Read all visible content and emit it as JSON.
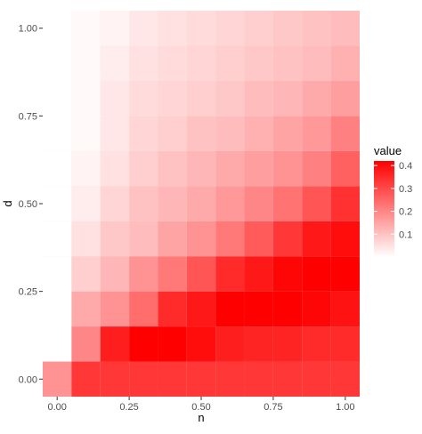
{
  "chart_data": {
    "type": "heatmap",
    "title": "",
    "xlabel": "n",
    "ylabel": "d",
    "x": [
      0.0,
      0.1,
      0.2,
      0.3,
      0.4,
      0.5,
      0.6,
      0.7,
      0.8,
      0.9,
      1.0
    ],
    "y": [
      0.0,
      0.1,
      0.2,
      0.3,
      0.4,
      0.5,
      0.6,
      0.7,
      0.8,
      0.9,
      1.0
    ],
    "xlim": [
      -0.05,
      1.05
    ],
    "ylim": [
      -0.05,
      1.05
    ],
    "x_ticks": [
      0.0,
      0.25,
      0.5,
      0.75,
      1.0
    ],
    "y_ticks": [
      0.0,
      0.25,
      0.5,
      0.75,
      1.0
    ],
    "x_tick_labels": [
      "0.00",
      "0.25",
      "0.50",
      "0.75",
      "1.00"
    ],
    "y_tick_labels": [
      "0.00",
      "0.25",
      "0.50",
      "0.75",
      "1.00"
    ],
    "values": [
      [
        0.18,
        0.33,
        0.33,
        0.33,
        0.33,
        0.33,
        0.33,
        0.33,
        0.33,
        0.33,
        0.33
      ],
      [
        0.0,
        0.2,
        0.37,
        0.42,
        0.42,
        0.4,
        0.37,
        0.36,
        0.36,
        0.35,
        0.35
      ],
      [
        0.0,
        0.14,
        0.18,
        0.24,
        0.35,
        0.38,
        0.42,
        0.42,
        0.42,
        0.41,
        0.39
      ],
      [
        0.0,
        0.08,
        0.12,
        0.18,
        0.22,
        0.28,
        0.35,
        0.38,
        0.41,
        0.42,
        0.42
      ],
      [
        0.0,
        0.05,
        0.09,
        0.11,
        0.15,
        0.18,
        0.22,
        0.27,
        0.33,
        0.38,
        0.4
      ],
      [
        0.0,
        0.03,
        0.07,
        0.1,
        0.12,
        0.14,
        0.17,
        0.2,
        0.23,
        0.28,
        0.34
      ],
      [
        0.0,
        0.02,
        0.05,
        0.08,
        0.1,
        0.12,
        0.14,
        0.16,
        0.18,
        0.21,
        0.26
      ],
      [
        0.0,
        0.01,
        0.04,
        0.07,
        0.08,
        0.1,
        0.11,
        0.13,
        0.15,
        0.17,
        0.21
      ],
      [
        0.0,
        0.01,
        0.04,
        0.06,
        0.07,
        0.08,
        0.09,
        0.11,
        0.12,
        0.14,
        0.16
      ],
      [
        0.0,
        0.01,
        0.03,
        0.05,
        0.06,
        0.07,
        0.08,
        0.09,
        0.1,
        0.11,
        0.13
      ],
      [
        0.0,
        0.01,
        0.02,
        0.04,
        0.05,
        0.06,
        0.07,
        0.08,
        0.09,
        0.1,
        0.11
      ]
    ],
    "legend": {
      "title": "value",
      "position": "right",
      "min": 0.0,
      "max": 0.42,
      "breaks": [
        0.1,
        0.2,
        0.3,
        0.4
      ],
      "break_labels": [
        "0.1",
        "0.2",
        "0.3",
        "0.4"
      ],
      "low_color": "#ffffff",
      "high_color": "#ff0000"
    },
    "grid": true,
    "panel_background": "#ebebeb",
    "grid_color": "#ffffff"
  }
}
